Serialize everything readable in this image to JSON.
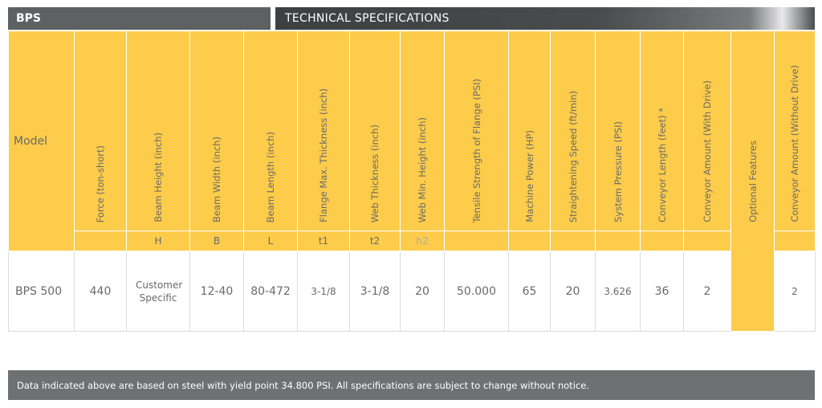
{
  "header": {
    "product": "BPS",
    "section": "TECHNICAL SPECIFICATIONS"
  },
  "columns": {
    "model": "Model",
    "force": "Force (ton-short)",
    "beam_height": "Beam Height (inch)",
    "beam_width": "Beam Width (inch)",
    "beam_length": "Beam Length (inch)",
    "flange_thickness": "Flange Max. Thickness (inch)",
    "web_thickness": "Web Thickness (inch)",
    "web_height": "Web Min. Height (inch)",
    "tensile": "Tensile Strength of Flange (PSI)",
    "power": "Machine Power (HP)",
    "speed": "Straightening Speed  (ft/min)",
    "pressure": "System Pressure (PSI)",
    "conveyor_length": "Conveyor Length (feet) *",
    "conveyor_with": "Conveyor Amount (With Drive)",
    "optional": "Optional Features",
    "conveyor_without": "Conveyor Amount (Without Drive)"
  },
  "symbols": {
    "beam_height": "H",
    "beam_width": "B",
    "beam_length": "L",
    "flange_thickness": "t1",
    "web_thickness": "t2",
    "web_height": "h2"
  },
  "row": {
    "model": "BPS 500",
    "force": "440",
    "beam_height": "Customer Specific",
    "beam_width": "12-40",
    "beam_length": "80-472",
    "flange_thickness": "3-1/8",
    "web_thickness": "3-1/8",
    "web_height": "20",
    "tensile": "50.000",
    "power": "65",
    "speed": "20",
    "pressure": "3.626",
    "conveyor_length": "36",
    "conveyor_with": "2",
    "conveyor_without": "2"
  },
  "note": "Data indicated above are based on steel with yield point 34.800 PSI. All specifications are subject to change without notice.",
  "colors": {
    "accent_yellow": "#fdcc4a",
    "dark_gray": "#5f6062",
    "footer_gray": "#6f7072"
  }
}
